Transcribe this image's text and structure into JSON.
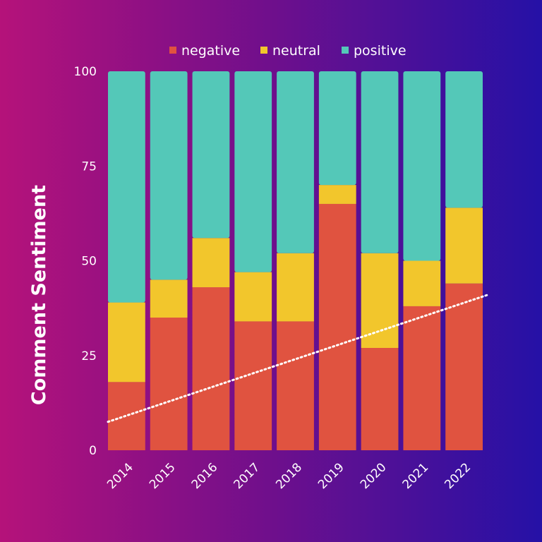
{
  "chart_data": {
    "type": "bar",
    "stacked": true,
    "categories": [
      "2014",
      "2015",
      "2016",
      "2017",
      "2018",
      "2019",
      "2020",
      "2021",
      "2022"
    ],
    "series": [
      {
        "name": "negative",
        "color": "#e05340",
        "values": [
          18,
          35,
          43,
          34,
          34,
          65,
          27,
          38,
          44
        ]
      },
      {
        "name": "neutral",
        "color": "#f2c62c",
        "values": [
          21,
          10,
          13,
          13,
          18,
          5,
          25,
          12,
          20
        ]
      },
      {
        "name": "positive",
        "color": "#54c8b8",
        "values": [
          61,
          55,
          44,
          53,
          48,
          30,
          48,
          50,
          36
        ]
      }
    ],
    "ylabel": "Comment Sentiment",
    "xlabel": "",
    "title": "",
    "ylim": [
      0,
      100
    ],
    "yticks": [
      "0",
      "25",
      "50",
      "75",
      "100"
    ],
    "trendline": {
      "style": "dotted",
      "color": "#ffffff",
      "start": 7.5,
      "end": 41
    },
    "legend": {
      "placement": "top-center"
    },
    "grid": false
  }
}
